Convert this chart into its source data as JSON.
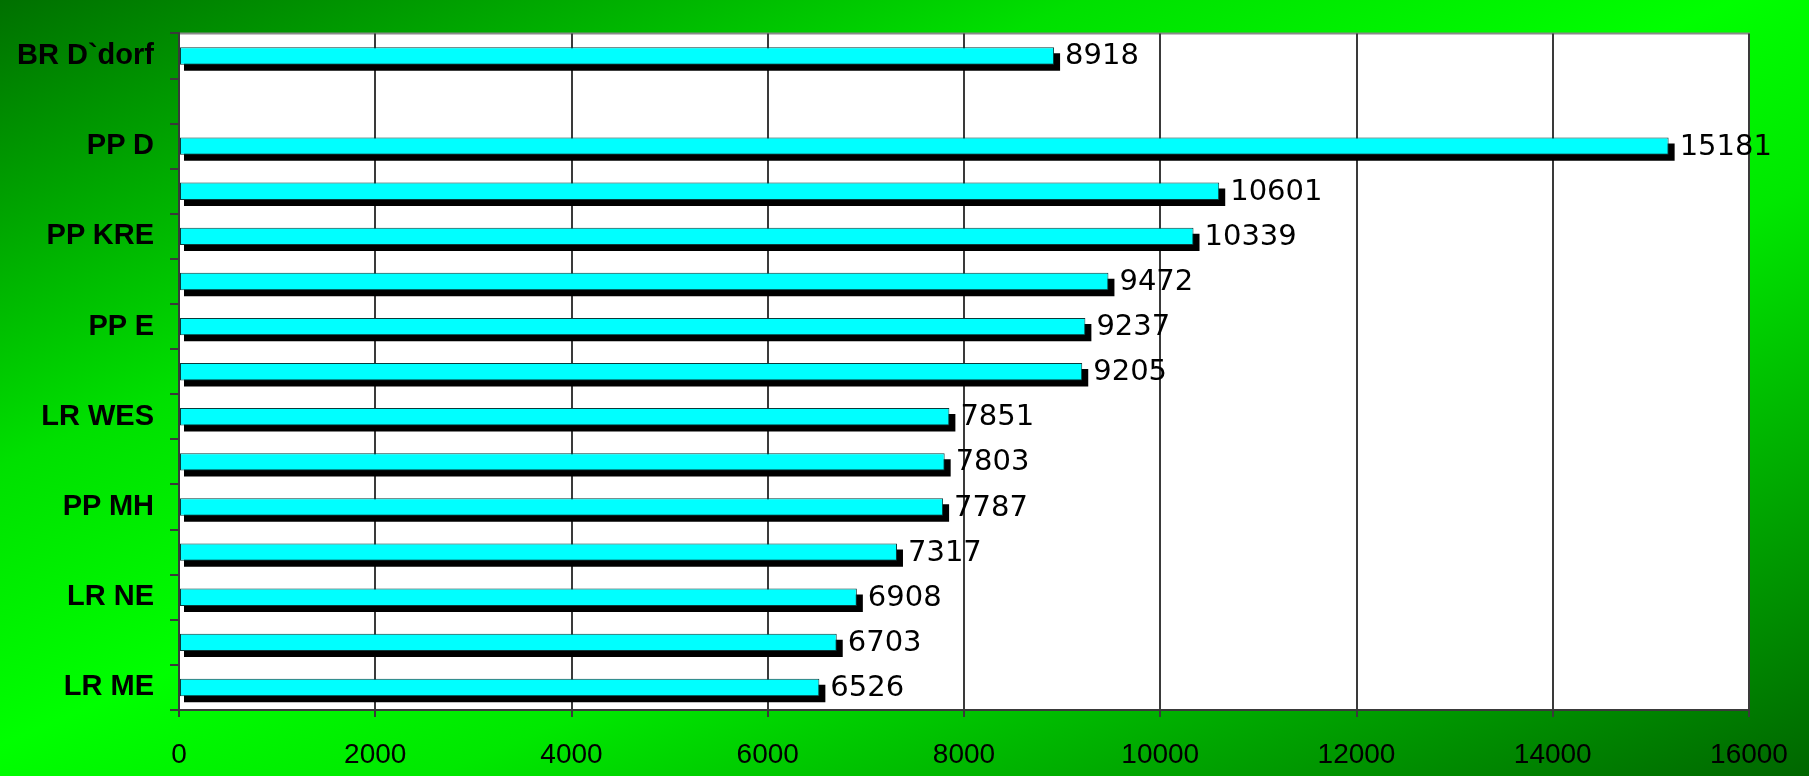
{
  "chart_data": {
    "type": "bar",
    "orientation": "horizontal",
    "categories": [
      "BR D`dorf",
      null,
      "PP D",
      null,
      "PP KRE",
      null,
      "PP E",
      null,
      "LR WES",
      null,
      "PP MH",
      null,
      "LR NE",
      null,
      "LR ME"
    ],
    "values": [
      8918,
      null,
      15181,
      10601,
      10339,
      9472,
      9237,
      9205,
      7851,
      7803,
      7787,
      7317,
      6908,
      6703,
      6526
    ],
    "color": "#00ffff",
    "xlim": [
      0,
      16000
    ],
    "xticks": [
      0,
      2000,
      4000,
      6000,
      8000,
      10000,
      12000,
      14000,
      16000
    ],
    "grid": "x",
    "data_labels": true
  }
}
